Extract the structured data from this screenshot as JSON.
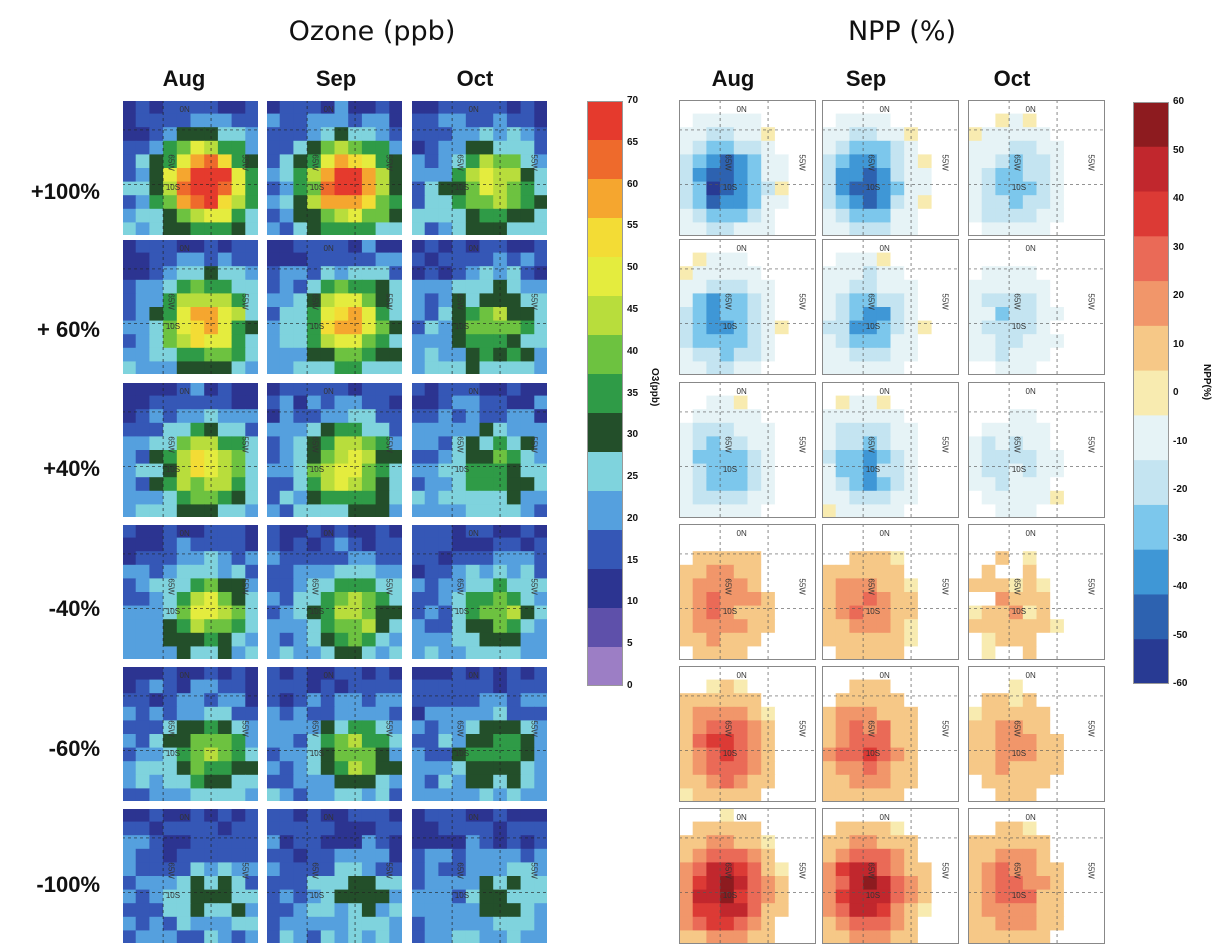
{
  "chart_data": {
    "type": "heatmap",
    "groups": [
      {
        "title": "Ozone (ppb)",
        "colorbar": {
          "label": "O3(ppb)",
          "ticks": [
            "70",
            "65",
            "60",
            "55",
            "50",
            "45",
            "40",
            "35",
            "30",
            "25",
            "20",
            "15",
            "10",
            "5",
            "0"
          ],
          "range": [
            0,
            70
          ],
          "colors": [
            "#e53a2d",
            "#ee6a2c",
            "#f5a62f",
            "#f3dc35",
            "#e4ec3e",
            "#b8dd3c",
            "#6dc240",
            "#2f9b47",
            "#234f2a",
            "#7fd3dd",
            "#55a0de",
            "#3557b6",
            "#2c3491",
            "#5e50aa",
            "#9c7ec5"
          ]
        },
        "col_labels": [
          "Aug",
          "Sep",
          "Oct"
        ]
      },
      {
        "title": "NPP (%)",
        "colorbar": {
          "label": "NPP(%)",
          "ticks": [
            "60",
            "50",
            "40",
            "30",
            "20",
            "10",
            "0",
            "-10",
            "-20",
            "-30",
            "-40",
            "-50",
            "-60"
          ],
          "range": [
            -60,
            60
          ],
          "colors": [
            "#8d1b1f",
            "#c1272d",
            "#dc3a35",
            "#ea6a57",
            "#f1966a",
            "#f6c887",
            "#f8ebb0",
            "#e6f3f6",
            "#c4e4f1",
            "#7cc7ec",
            "#3f97d6",
            "#2d62b0",
            "#283a93"
          ]
        },
        "col_labels": [
          "Aug",
          "Sep",
          "Oct"
        ]
      }
    ],
    "row_labels": [
      "+100%",
      "+ 60%",
      "+40%",
      "-40%",
      "-60%",
      "-100%"
    ],
    "map_labels": {
      "lat_top": "0N",
      "lat_mid": "10S",
      "lon_left": "65W",
      "lon_right": "55W"
    }
  }
}
